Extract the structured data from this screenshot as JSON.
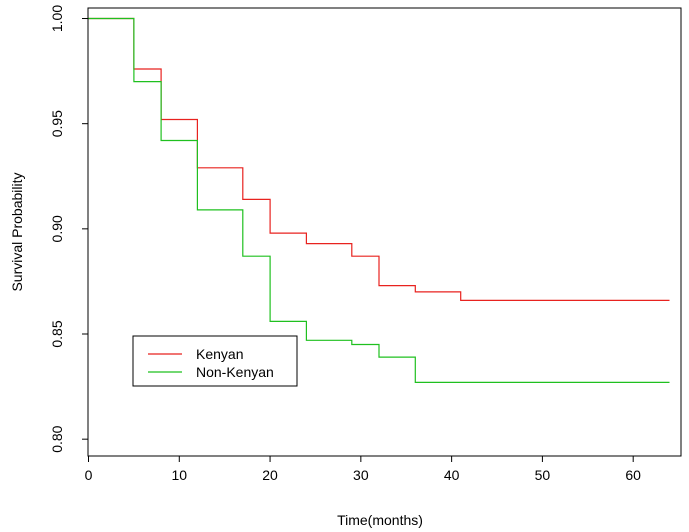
{
  "chart_data": {
    "type": "line",
    "step": true,
    "title": "",
    "xlabel": "Time(months)",
    "ylabel": "Survival Probability",
    "xlim": [
      0,
      64
    ],
    "ylim": [
      0.792,
      1.005
    ],
    "xticks": [
      0,
      10,
      20,
      30,
      40,
      50,
      60
    ],
    "yticks": [
      0.8,
      0.85,
      0.9,
      0.95,
      1.0
    ],
    "ytick_labels": [
      "0.80",
      "0.85",
      "0.90",
      "0.95",
      "1.00"
    ],
    "grid": false,
    "legend_position": "bottom-left",
    "series": [
      {
        "name": "Kenyan",
        "color": "#e8221f",
        "x": [
          0,
          5,
          8,
          12,
          17,
          20,
          24,
          29,
          32,
          36,
          41,
          64
        ],
        "y": [
          1.0,
          0.976,
          0.952,
          0.929,
          0.914,
          0.898,
          0.893,
          0.887,
          0.873,
          0.87,
          0.866,
          0.866
        ]
      },
      {
        "name": "Non-Kenyan",
        "color": "#1fc01f",
        "x": [
          0,
          5,
          8,
          12,
          17,
          20,
          24,
          29,
          32,
          36,
          64
        ],
        "y": [
          1.0,
          0.97,
          0.942,
          0.909,
          0.887,
          0.856,
          0.847,
          0.845,
          0.839,
          0.827,
          0.827
        ]
      }
    ]
  }
}
